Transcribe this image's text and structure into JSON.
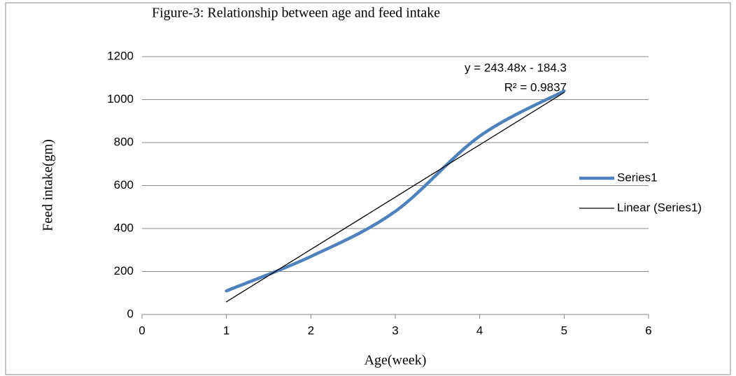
{
  "chart_data": {
    "type": "line",
    "title": "Figure-3: Relationship between age and  feed intake",
    "xlabel": "Age(week)",
    "ylabel": "Feed intake(gm)",
    "annotations": [
      "y = 243.48x - 184.3",
      "R² = 0.9837"
    ],
    "xlim": [
      0,
      6
    ],
    "xticks": [
      0,
      1,
      2,
      3,
      4,
      5,
      6
    ],
    "ylim": [
      0,
      1200
    ],
    "yticks": [
      0,
      200,
      400,
      600,
      800,
      1000,
      1200
    ],
    "grid": true,
    "legend": "right",
    "series": [
      {
        "name": "Series1",
        "color": "#4f81bd",
        "smooth": true,
        "x": [
          1,
          2,
          3,
          4,
          5
        ],
        "values": [
          110,
          270,
          480,
          830,
          1040
        ]
      },
      {
        "name": "Linear (Series1)",
        "color": "#000000",
        "smooth": false,
        "x": [
          1,
          5
        ],
        "values": [
          59.18,
          1033.1
        ]
      }
    ]
  }
}
